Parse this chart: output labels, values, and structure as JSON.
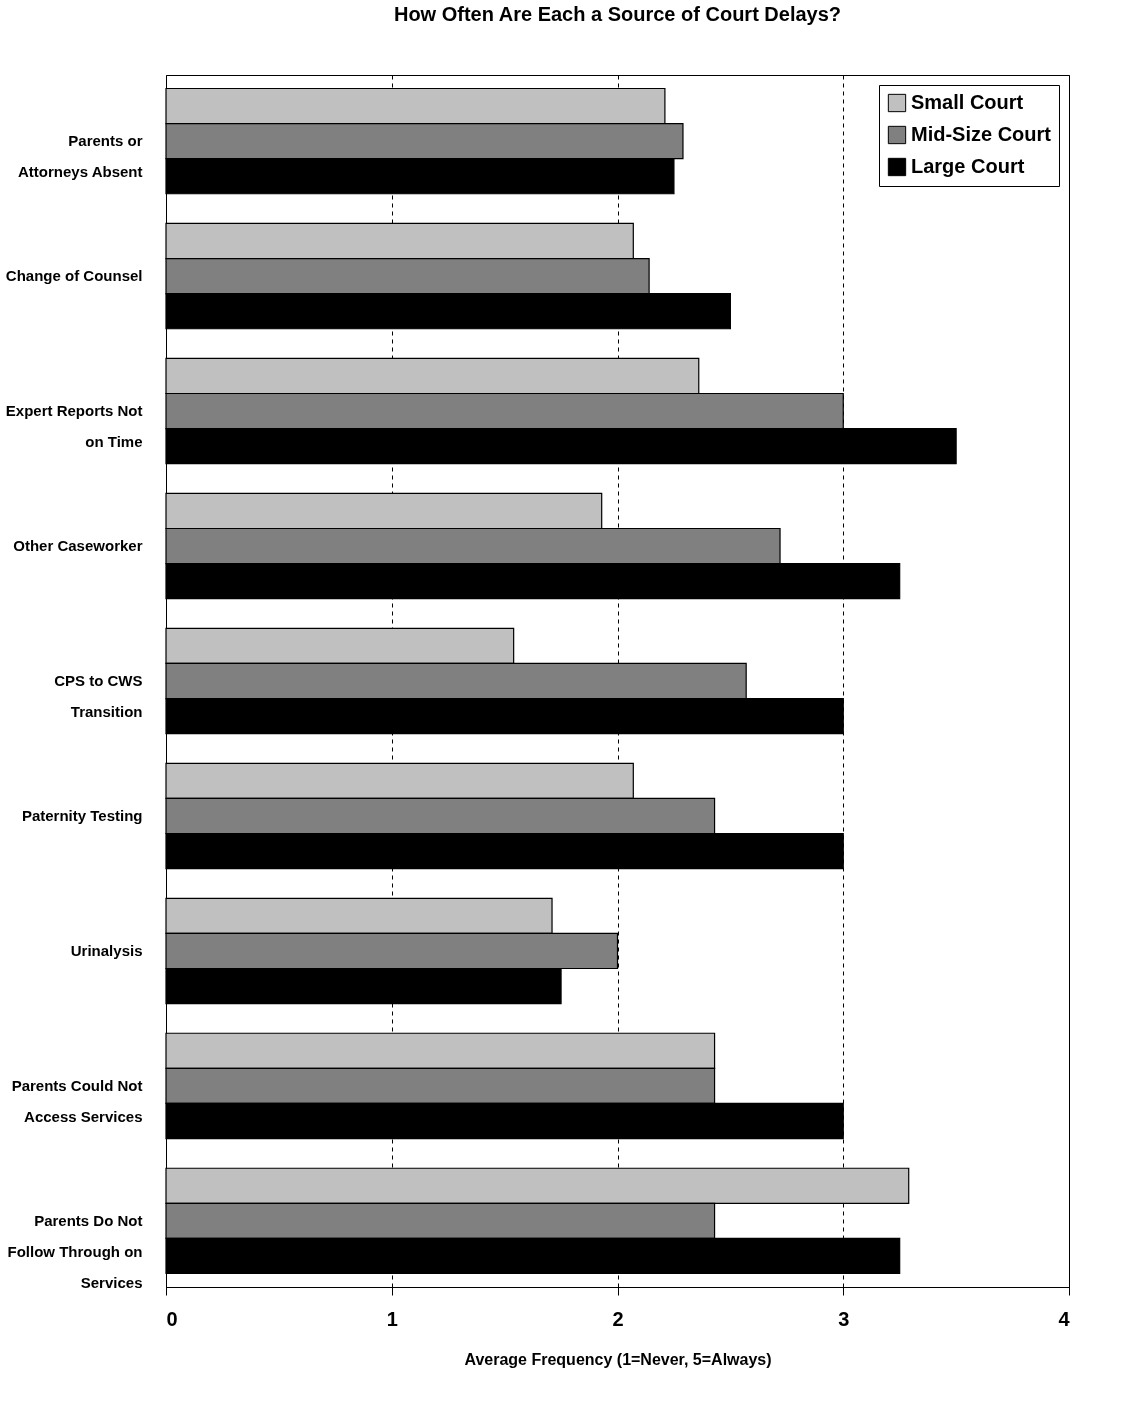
{
  "chart_data": {
    "type": "bar",
    "orientation": "horizontal",
    "title": "How Often Are Each a Source of Court Delays?",
    "xlabel": "Average Frequency (1=Never, 5=Always)",
    "categories": [
      "Parents or Attorneys Absent",
      "Change of Counsel",
      "Expert Reports Not on Time",
      "Other Caseworker",
      "CPS to CWS Transition",
      "Paternity Testing",
      "Urinalysis",
      "Parents Could Not Access Services",
      "Parents Do Not Follow Through on Services"
    ],
    "series": [
      {
        "name": "Small Court",
        "color": "#c0c0c0",
        "values": [
          2.21,
          2.07,
          2.36,
          1.93,
          1.54,
          2.07,
          1.71,
          2.43,
          3.29
        ]
      },
      {
        "name": "Mid-Size Court",
        "color": "#808080",
        "values": [
          2.29,
          2.14,
          3.0,
          2.72,
          2.57,
          2.43,
          2.0,
          2.43,
          2.43
        ]
      },
      {
        "name": "Large Court",
        "color": "#000000",
        "values": [
          2.25,
          2.5,
          3.5,
          3.25,
          3.0,
          3.0,
          1.75,
          3.0,
          3.25
        ]
      }
    ],
    "xlim": [
      0,
      4
    ],
    "xticks": [
      0,
      1,
      2,
      3,
      4
    ],
    "grid": "x",
    "legend": "top right"
  }
}
